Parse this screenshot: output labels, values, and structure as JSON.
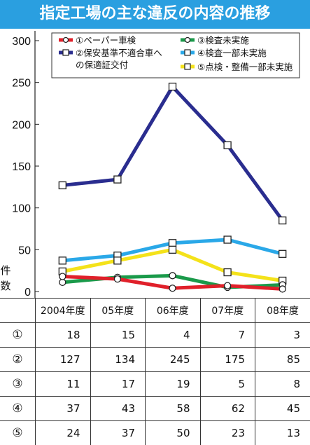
{
  "title": "指定工場の主な違反の内容の推移",
  "chart_data": {
    "type": "line",
    "ylabel": "件数",
    "ylim": [
      0,
      300
    ],
    "yticks": [
      0,
      50,
      100,
      150,
      200,
      250,
      300
    ],
    "categories": [
      "2004年度",
      "05年度",
      "06年度",
      "07年度",
      "08年度"
    ],
    "grid": false,
    "legend_position": "top-right",
    "series": [
      {
        "mark": "①",
        "name": "①ペーパー車検",
        "color": "#e0202a",
        "values": [
          18,
          15,
          4,
          7,
          3
        ]
      },
      {
        "mark": "②",
        "name": "②保安基準不適合車への保適証交付",
        "color": "#2a2d8f",
        "values": [
          127,
          134,
          245,
          175,
          85
        ]
      },
      {
        "mark": "③",
        "name": "③検査未実施",
        "color": "#1a9a4a",
        "values": [
          11,
          17,
          19,
          5,
          8
        ]
      },
      {
        "mark": "④",
        "name": "④検査一部未実施",
        "color": "#2aa8e8",
        "values": [
          37,
          43,
          58,
          62,
          45
        ]
      },
      {
        "mark": "⑤",
        "name": "⑤点検・整備一部未実施",
        "color": "#f4e21a",
        "values": [
          24,
          37,
          50,
          23,
          13
        ]
      }
    ]
  }
}
